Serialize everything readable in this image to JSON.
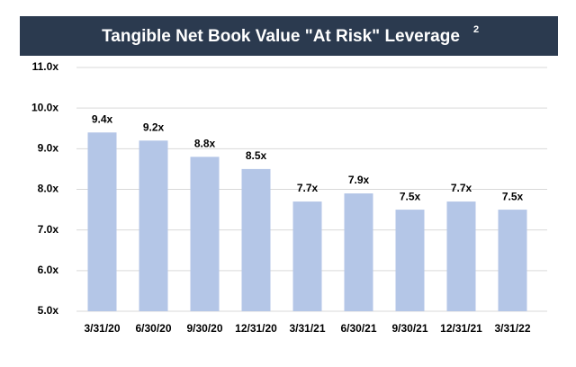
{
  "chart_data": {
    "type": "bar",
    "title": "Tangible Net Book Value \"At Risk\" Leverage",
    "title_superscript": "2",
    "categories": [
      "3/31/20",
      "6/30/20",
      "9/30/20",
      "12/31/20",
      "3/31/21",
      "6/30/21",
      "9/30/21",
      "12/31/21",
      "3/31/22"
    ],
    "values": [
      9.4,
      9.2,
      8.8,
      8.5,
      7.7,
      7.9,
      7.5,
      7.7,
      7.5
    ],
    "value_labels": [
      "9.4x",
      "9.2x",
      "8.8x",
      "8.5x",
      "7.7x",
      "7.9x",
      "7.5x",
      "7.7x",
      "7.5x"
    ],
    "color": "#b4c6e7",
    "ylim": [
      5,
      11
    ],
    "yticks": [
      {
        "value": 5,
        "label": "5.0x"
      },
      {
        "value": 6,
        "label": "6.0x"
      },
      {
        "value": 7,
        "label": "7.0x"
      },
      {
        "value": 8,
        "label": "8.0x"
      },
      {
        "value": 9,
        "label": "9.0x"
      },
      {
        "value": 10,
        "label": "10.0x"
      },
      {
        "value": 11,
        "label": "11.0x"
      }
    ],
    "grid": true
  }
}
